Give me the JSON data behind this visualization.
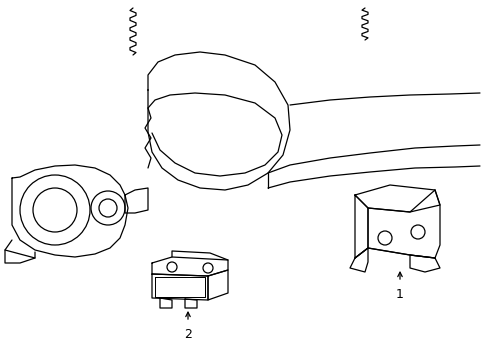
{
  "bg_color": "#ffffff",
  "line_color": "#000000",
  "lw": 0.9,
  "label1": "1",
  "label2": "2",
  "figsize": [
    4.89,
    3.6
  ],
  "dpi": 100
}
